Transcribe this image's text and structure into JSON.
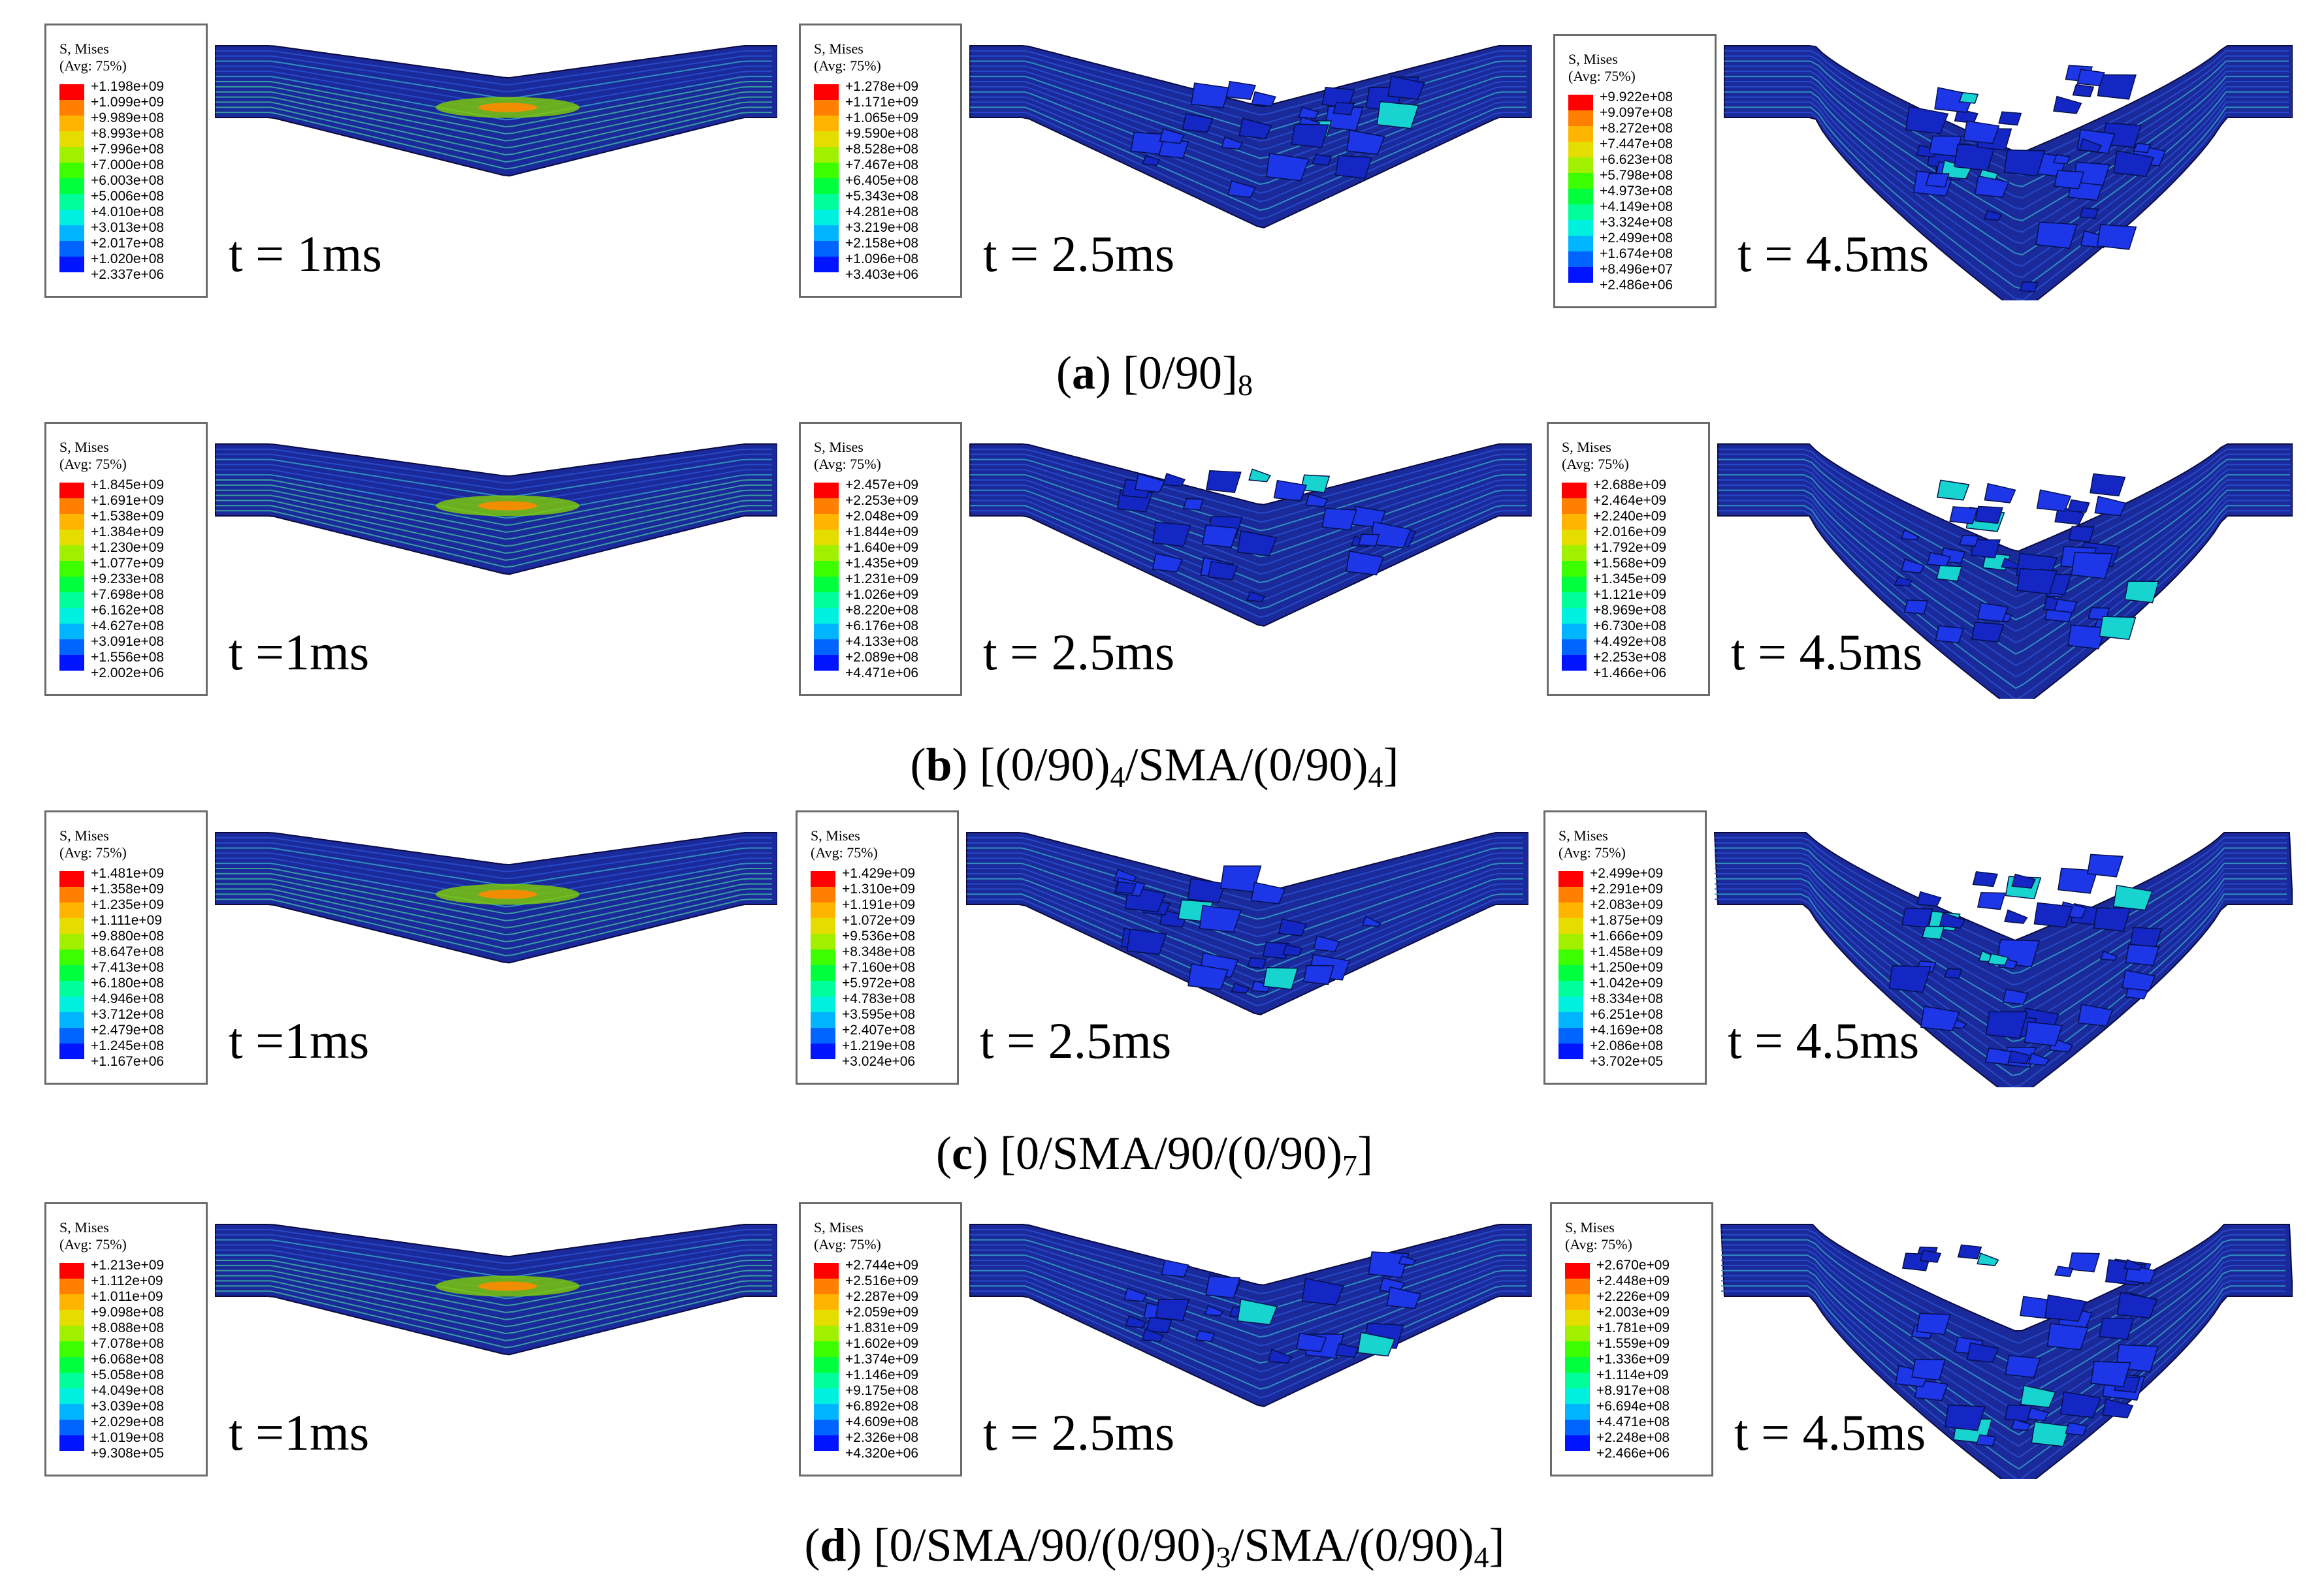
{
  "legend_title": "S, Mises",
  "legend_avg": "(Avg: 75%)",
  "legend_colors": [
    "#ff0000",
    "#ff7f00",
    "#ffb400",
    "#e5dc00",
    "#a0f000",
    "#3cff00",
    "#00ff3c",
    "#00ff9a",
    "#00f0e0",
    "#00b4ff",
    "#0064ff",
    "#0014ff",
    "#0000e0"
  ],
  "rows": [
    {
      "caption_letter": "a",
      "caption_text": " [0/90]",
      "caption_sub": "8",
      "caption_tail": "",
      "panels": [
        {
          "time": "t = 1ms",
          "values": [
            "+1.198e+09",
            "+1.099e+09",
            "+9.989e+08",
            "+8.993e+08",
            "+7.996e+08",
            "+7.000e+08",
            "+6.003e+08",
            "+5.006e+08",
            "+4.010e+08",
            "+3.013e+08",
            "+2.017e+08",
            "+1.020e+08",
            "+2.337e+06"
          ]
        },
        {
          "time": "t = 2.5ms",
          "values": [
            "+1.278e+09",
            "+1.171e+09",
            "+1.065e+09",
            "+9.590e+08",
            "+8.528e+08",
            "+7.467e+08",
            "+6.405e+08",
            "+5.343e+08",
            "+4.281e+08",
            "+3.219e+08",
            "+2.158e+08",
            "+1.096e+08",
            "+3.403e+06"
          ]
        },
        {
          "time": "t = 4.5ms",
          "values": [
            "+9.922e+08",
            "+9.097e+08",
            "+8.272e+08",
            "+7.447e+08",
            "+6.623e+08",
            "+5.798e+08",
            "+4.973e+08",
            "+4.149e+08",
            "+3.324e+08",
            "+2.499e+08",
            "+1.674e+08",
            "+8.496e+07",
            "+2.486e+06"
          ]
        }
      ]
    },
    {
      "caption_letter": "b",
      "caption_text": " [(0/90)",
      "caption_sub": "4",
      "caption_mid": "/SMA/(0/90)",
      "caption_sub2": "4",
      "caption_tail": "]",
      "panels": [
        {
          "time": "t =1ms",
          "values": [
            "+1.845e+09",
            "+1.691e+09",
            "+1.538e+09",
            "+1.384e+09",
            "+1.230e+09",
            "+1.077e+09",
            "+9.233e+08",
            "+7.698e+08",
            "+6.162e+08",
            "+4.627e+08",
            "+3.091e+08",
            "+1.556e+08",
            "+2.002e+06"
          ]
        },
        {
          "time": "t = 2.5ms",
          "values": [
            "+2.457e+09",
            "+2.253e+09",
            "+2.048e+09",
            "+1.844e+09",
            "+1.640e+09",
            "+1.435e+09",
            "+1.231e+09",
            "+1.026e+09",
            "+8.220e+08",
            "+6.176e+08",
            "+4.133e+08",
            "+2.089e+08",
            "+4.471e+06"
          ]
        },
        {
          "time": "t = 4.5ms",
          "values": [
            "+2.688e+09",
            "+2.464e+09",
            "+2.240e+09",
            "+2.016e+09",
            "+1.792e+09",
            "+1.568e+09",
            "+1.345e+09",
            "+1.121e+09",
            "+8.969e+08",
            "+6.730e+08",
            "+4.492e+08",
            "+2.253e+08",
            "+1.466e+06"
          ]
        }
      ]
    },
    {
      "caption_letter": "c",
      "caption_text": " [0/SMA/90/(0/90)",
      "caption_sub": "7",
      "caption_tail": "]",
      "panels": [
        {
          "time": "t =1ms",
          "values": [
            "+1.481e+09",
            "+1.358e+09",
            "+1.235e+09",
            "+1.111e+09",
            "+9.880e+08",
            "+8.647e+08",
            "+7.413e+08",
            "+6.180e+08",
            "+4.946e+08",
            "+3.712e+08",
            "+2.479e+08",
            "+1.245e+08",
            "+1.167e+06"
          ]
        },
        {
          "time": "t = 2.5ms",
          "values": [
            "+1.429e+09",
            "+1.310e+09",
            "+1.191e+09",
            "+1.072e+09",
            "+9.536e+08",
            "+8.348e+08",
            "+7.160e+08",
            "+5.972e+08",
            "+4.783e+08",
            "+3.595e+08",
            "+2.407e+08",
            "+1.219e+08",
            "+3.024e+06"
          ]
        },
        {
          "time": "t = 4.5ms",
          "values": [
            "+2.499e+09",
            "+2.291e+09",
            "+2.083e+09",
            "+1.875e+09",
            "+1.666e+09",
            "+1.458e+09",
            "+1.250e+09",
            "+1.042e+09",
            "+8.334e+08",
            "+6.251e+08",
            "+4.169e+08",
            "+2.086e+08",
            "+3.702e+05"
          ]
        }
      ]
    },
    {
      "caption_letter": "d",
      "caption_text": " [0/SMA/90/(0/90)",
      "caption_sub": "3",
      "caption_mid": "/SMA/(0/90)",
      "caption_sub2": "4",
      "caption_tail": "]",
      "panels": [
        {
          "time": "t =1ms",
          "values": [
            "+1.213e+09",
            "+1.112e+09",
            "+1.011e+09",
            "+9.098e+08",
            "+8.088e+08",
            "+7.078e+08",
            "+6.068e+08",
            "+5.058e+08",
            "+4.049e+08",
            "+3.039e+08",
            "+2.029e+08",
            "+1.019e+08",
            "+9.308e+05"
          ]
        },
        {
          "time": "t = 2.5ms",
          "values": [
            "+2.744e+09",
            "+2.516e+09",
            "+2.287e+09",
            "+2.059e+09",
            "+1.831e+09",
            "+1.602e+09",
            "+1.374e+09",
            "+1.146e+09",
            "+9.175e+08",
            "+6.892e+08",
            "+4.609e+08",
            "+2.326e+08",
            "+4.320e+06"
          ]
        },
        {
          "time": "t = 4.5ms",
          "values": [
            "+2.670e+09",
            "+2.448e+09",
            "+2.226e+09",
            "+2.003e+09",
            "+1.781e+09",
            "+1.559e+09",
            "+1.336e+09",
            "+1.114e+09",
            "+8.917e+08",
            "+6.694e+08",
            "+4.471e+08",
            "+2.248e+08",
            "+2.466e+06"
          ]
        }
      ]
    }
  ]
}
